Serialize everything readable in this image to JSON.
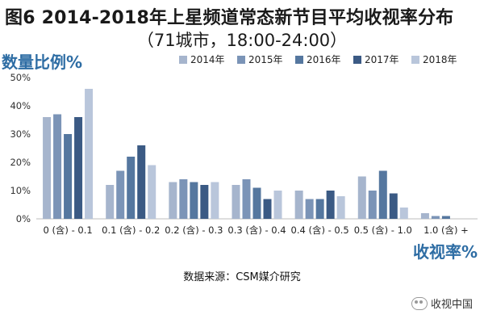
{
  "chart_data": {
    "type": "bar",
    "title": "图6  2014-2018年上星频道常态新节目平均收视率分布",
    "subtitle": "（71城市，18:00-24:00）",
    "ylabel": "数量比例%",
    "xlabel": "收视率%",
    "ylim": [
      0,
      50
    ],
    "yticks": [
      "0%",
      "10%",
      "20%",
      "30%",
      "40%",
      "50%"
    ],
    "ytick_values": [
      0,
      10,
      20,
      30,
      40,
      50
    ],
    "grid": false,
    "legend_position": "top",
    "categories": [
      "0 (含) - 0.1",
      "0.1 (含) - 0.2",
      "0.2 (含) - 0.3",
      "0.3 (含) - 0.4",
      "0.4 (含) - 0.5",
      "0.5 (含) - 1.0",
      "1.0 (含) +"
    ],
    "series": [
      {
        "name": "2014年",
        "color": "#a6b5cd",
        "values": [
          36,
          12,
          13,
          12,
          10,
          15,
          2
        ]
      },
      {
        "name": "2015年",
        "color": "#7b94b7",
        "values": [
          37,
          17,
          14,
          14,
          7,
          10,
          1
        ]
      },
      {
        "name": "2016年",
        "color": "#55779f",
        "values": [
          30,
          22,
          13,
          11,
          7,
          17,
          1
        ]
      },
      {
        "name": "2017年",
        "color": "#3b5a84",
        "values": [
          36,
          26,
          12,
          7,
          10,
          9,
          0
        ]
      },
      {
        "name": "2018年",
        "color": "#b9c6db",
        "values": [
          46,
          19,
          13,
          10,
          8,
          4,
          0
        ]
      }
    ]
  },
  "source": "数据来源：CSM媒介研究",
  "watermark": "收视中国",
  "watermark_icon": "wechat-icon"
}
